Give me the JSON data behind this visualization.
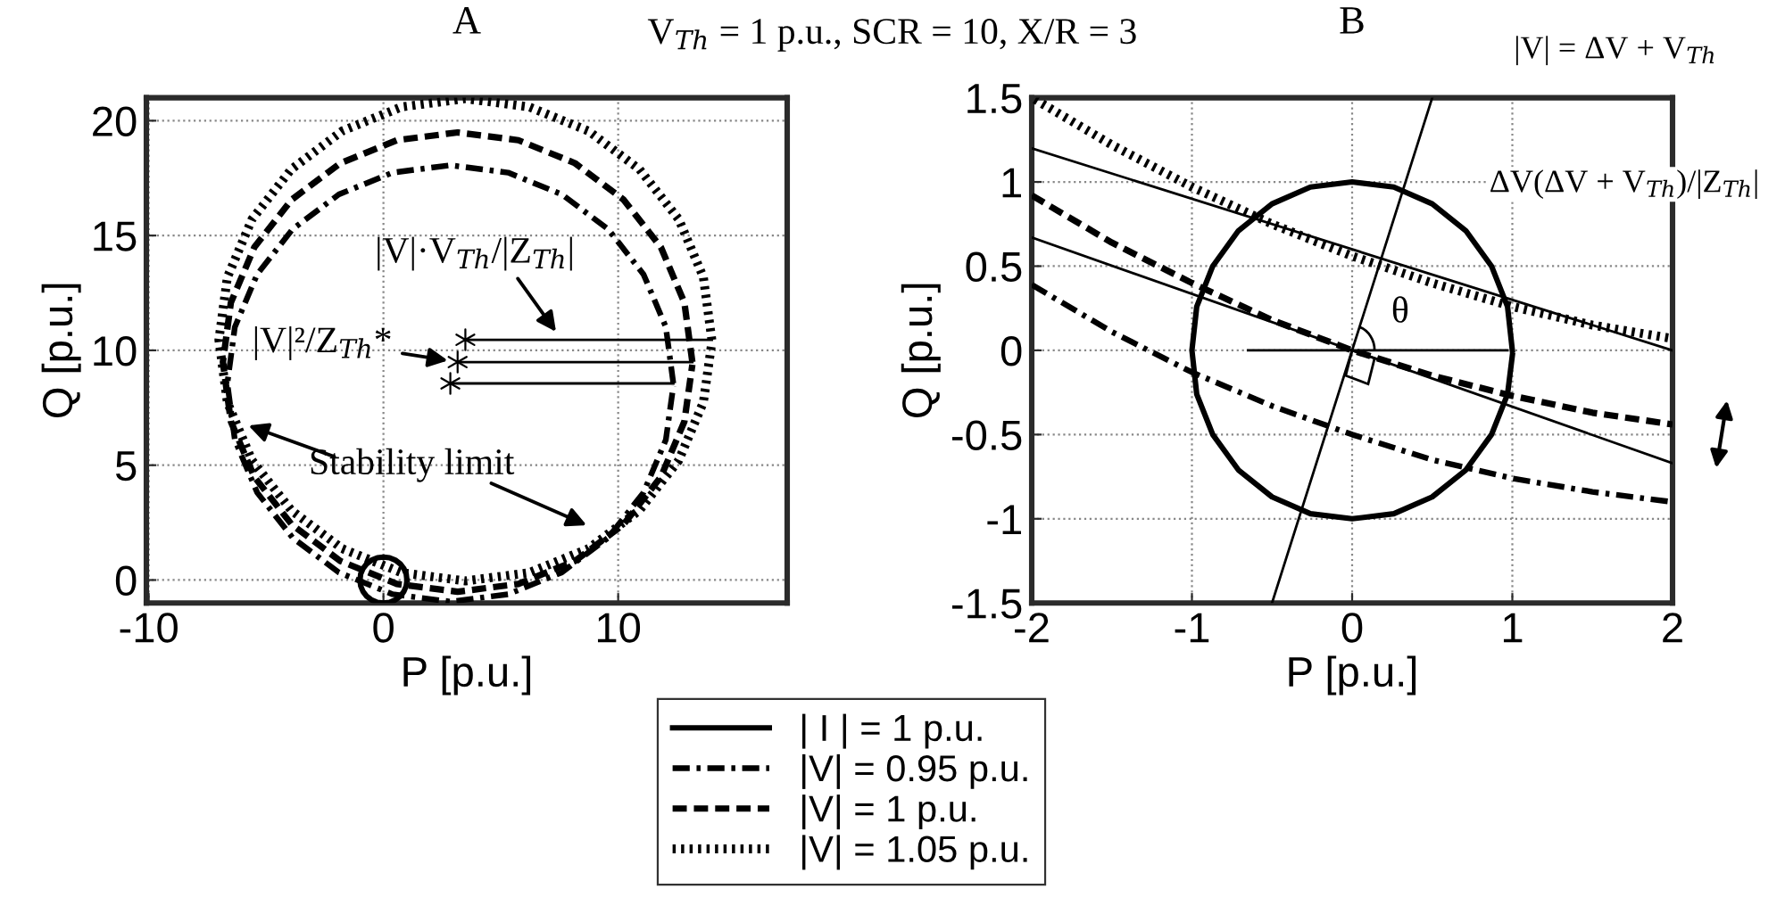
{
  "chart_data": [
    {
      "type": "line",
      "title": "A",
      "xlabel": "P [p.u.]",
      "ylabel": "Q [p.u.]",
      "xlim": [
        -10.1,
        17.2
      ],
      "ylim": [
        -1,
        21
      ],
      "xticks": [
        -10,
        0,
        10
      ],
      "yticks": [
        0,
        5,
        10,
        15,
        20
      ],
      "grid": true,
      "legend": "bottom",
      "annotations": [
        "V$_{Th}$ = 1 p.u., SCR = 10, X/R = 3",
        {
          "text": "|V|²/Z$_{Th}$*",
          "x": 3.16,
          "y": 9.49
        },
        {
          "text": "|V|·V$_{Th}$/|Z$_{Th}$|",
          "x": 7.6,
          "y": 10.46
        },
        "Stability limit"
      ],
      "series": [
        {
          "name": "| I | = 1 p.u.",
          "color": "#000000",
          "line_style": "solid",
          "x": [
            1,
            0.97,
            0.87,
            0.71,
            0.5,
            0.26,
            0,
            -0.26,
            -0.5,
            -0.71,
            -0.87,
            -0.97,
            -1,
            -0.97,
            -0.87,
            -0.71,
            -0.5,
            -0.26,
            0,
            0.26,
            0.5,
            0.71,
            0.87,
            0.97,
            1
          ],
          "values": [
            0,
            0.26,
            0.5,
            0.71,
            0.87,
            0.97,
            1,
            0.97,
            0.87,
            0.71,
            0.5,
            0.26,
            0,
            -0.26,
            -0.5,
            -0.71,
            -0.87,
            -0.97,
            -1,
            -0.97,
            -0.87,
            -0.71,
            -0.5,
            -0.26,
            -0.03
          ]
        },
        {
          "name": "|V| = 0.95 p.u.",
          "color": "#000000",
          "line_style": "dashdot",
          "x": [
            12.35,
            12.03,
            11.08,
            9.57,
            7.6,
            5.31,
            2.85,
            0.39,
            -1.9,
            -3.87,
            -5.38,
            -6.33,
            -6.65,
            -6.33,
            -5.38,
            -3.87,
            -1.9,
            0.39,
            2.85,
            5.31,
            7.6,
            9.57,
            11.08,
            12.03,
            12.35
          ],
          "values": [
            8.56,
            11.02,
            13.31,
            15.28,
            16.79,
            17.74,
            18.06,
            17.74,
            16.79,
            15.28,
            13.31,
            11.02,
            8.56,
            6.1,
            3.81,
            1.84,
            0.33,
            -0.62,
            -0.94,
            -0.62,
            0.33,
            1.84,
            3.81,
            6.1,
            8.45
          ]
        },
        {
          "name": "|V| = 1 p.u.",
          "color": "#000000",
          "line_style": "dashed",
          "x": [
            13.16,
            12.82,
            11.82,
            10.23,
            8.16,
            5.75,
            3.16,
            0.57,
            -1.84,
            -3.91,
            -5.5,
            -6.5,
            -6.84,
            -6.5,
            -5.5,
            -3.91,
            -1.84,
            0.57,
            3.16,
            5.75,
            8.16,
            10.23,
            11.82,
            12.82,
            13.16
          ],
          "values": [
            9.49,
            12.08,
            14.49,
            16.56,
            18.15,
            19.15,
            19.49,
            19.15,
            18.15,
            16.56,
            14.49,
            12.08,
            9.49,
            6.9,
            4.49,
            2.42,
            0.83,
            -0.17,
            -0.51,
            -0.17,
            0.83,
            2.42,
            4.49,
            6.9,
            9.38
          ]
        },
        {
          "name": "|V| = 1.05 p.u.",
          "color": "#000000",
          "line_style": "dotted",
          "x": [
            13.99,
            13.63,
            12.58,
            10.91,
            8.74,
            6.21,
            3.49,
            0.77,
            -1.76,
            -3.93,
            -5.6,
            -6.65,
            -7.01,
            -6.65,
            -5.6,
            -3.93,
            -1.76,
            0.77,
            3.49,
            6.21,
            8.74,
            10.91,
            12.58,
            13.63,
            13.99
          ],
          "values": [
            10.46,
            13.18,
            15.71,
            17.88,
            19.55,
            20.6,
            20.96,
            20.6,
            19.55,
            17.88,
            15.71,
            13.18,
            10.46,
            7.74,
            5.21,
            3.04,
            1.37,
            0.32,
            -0.04,
            0.32,
            1.37,
            3.04,
            5.21,
            7.74,
            10.35
          ]
        },
        {
          "type": "scatter",
          "marker": "cross",
          "color": "#000000",
          "x": [
            3.49,
            3.16,
            2.85
          ],
          "values": [
            10.46,
            9.49,
            8.56
          ]
        },
        {
          "color": "#000000",
          "x": [
            3.49,
            13.99
          ],
          "values": [
            10.46,
            10.46
          ]
        },
        {
          "color": "#000000",
          "x": [
            3.16,
            13.16
          ],
          "values": [
            9.49,
            9.49
          ]
        },
        {
          "color": "#000000",
          "x": [
            2.85,
            12.35
          ],
          "values": [
            8.56,
            8.56
          ]
        }
      ]
    },
    {
      "type": "line",
      "title": "B",
      "xlabel": "P [p.u.]",
      "ylabel": "Q [p.u.]",
      "xlim": [
        -2,
        2
      ],
      "ylim": [
        -1.5,
        1.5
      ],
      "xticks": [
        -2,
        -1,
        0,
        1,
        2
      ],
      "yticks": [
        -1.5,
        -1,
        -0.5,
        0,
        0.5,
        1,
        1.5
      ],
      "grid": true,
      "annotations": [
        "|V| = ΔV + V$_{Th}$",
        "ΔV(ΔV + V$_{Th}$)/|Z$_{Th}$|",
        "θ"
      ],
      "series": [
        {
          "color": "#000000",
          "line_style": "solid",
          "x": [
            1,
            0.97,
            0.87,
            0.71,
            0.5,
            0.26,
            0,
            -0.26,
            -0.5,
            -0.71,
            -0.87,
            -0.97,
            -1,
            -0.97,
            -0.87,
            -0.71,
            -0.5,
            -0.26,
            0,
            0.26,
            0.5,
            0.71,
            0.87,
            0.97,
            1
          ],
          "values": [
            0,
            0.26,
            0.5,
            0.71,
            0.87,
            0.97,
            1,
            0.97,
            0.87,
            0.71,
            0.5,
            0.26,
            0,
            -0.26,
            -0.5,
            -0.71,
            -0.87,
            -0.97,
            -1,
            -0.97,
            -0.87,
            -0.71,
            -0.5,
            -0.26,
            -0.03
          ]
        },
        {
          "color": "#000000",
          "line_style": "dashdot",
          "x": [
            -2,
            -1.5,
            -1,
            -0.5,
            0,
            0.5,
            1,
            1.5,
            2
          ],
          "values": [
            0.39,
            0.11,
            -0.13,
            -0.33,
            -0.5,
            -0.65,
            -0.76,
            -0.84,
            -0.9
          ]
        },
        {
          "color": "#000000",
          "line_style": "dashed",
          "x": [
            -2,
            -1.5,
            -1,
            -0.5,
            0,
            0.5,
            1,
            1.5,
            2
          ],
          "values": [
            0.92,
            0.64,
            0.4,
            0.18,
            0,
            -0.15,
            -0.27,
            -0.37,
            -0.44
          ]
        },
        {
          "color": "#000000",
          "line_style": "dotted",
          "x": [
            -1.98,
            -1.5,
            -1,
            -0.5,
            0,
            0.5,
            1,
            1.5,
            2
          ],
          "values": [
            1.49,
            1.22,
            0.97,
            0.75,
            0.56,
            0.4,
            0.26,
            0.15,
            0.07
          ]
        },
        {
          "color": "#000000",
          "x": [
            -2,
            2
          ],
          "values": [
            1.2,
            0
          ]
        },
        {
          "color": "#000000",
          "x": [
            -2,
            2
          ],
          "values": [
            0.67,
            -0.67
          ]
        },
        {
          "color": "#000000",
          "x": [
            -0.5,
            0.5
          ],
          "values": [
            -1.5,
            1.5
          ]
        },
        {
          "color": "#000000",
          "x": [
            -0.65,
            0.97
          ],
          "values": [
            0,
            0
          ]
        }
      ]
    }
  ]
}
